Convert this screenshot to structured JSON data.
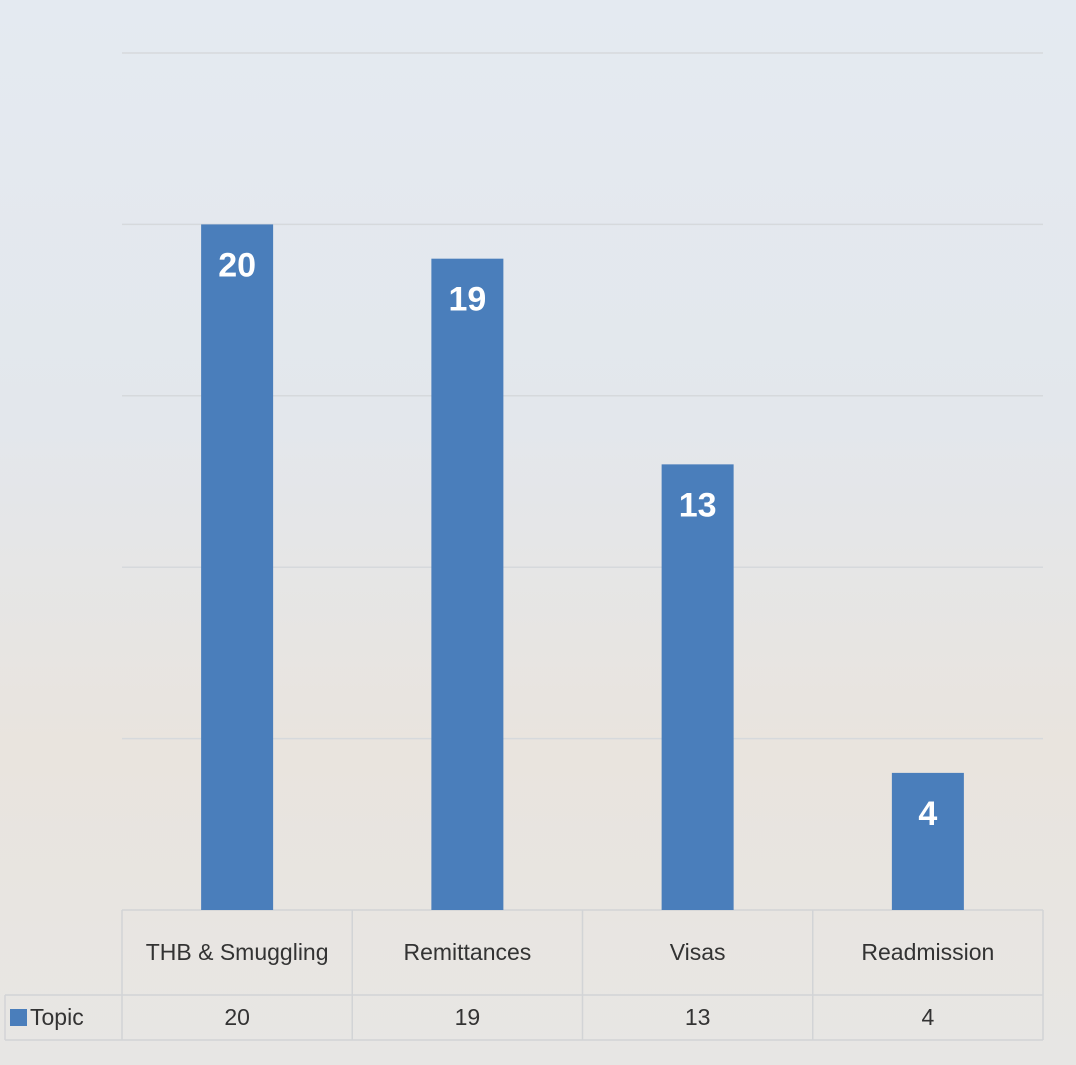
{
  "chart_data": {
    "type": "bar",
    "categories": [
      "THB & Smuggling",
      "Remittances",
      "Visas",
      "Readmission"
    ],
    "series": [
      {
        "name": "Topic",
        "color": "#4a7ebb",
        "values": [
          20,
          19,
          13,
          4
        ]
      }
    ],
    "ylim": [
      0,
      25
    ],
    "yticks": [
      5,
      10,
      15,
      20,
      25
    ],
    "grid": true,
    "data_table": true
  }
}
